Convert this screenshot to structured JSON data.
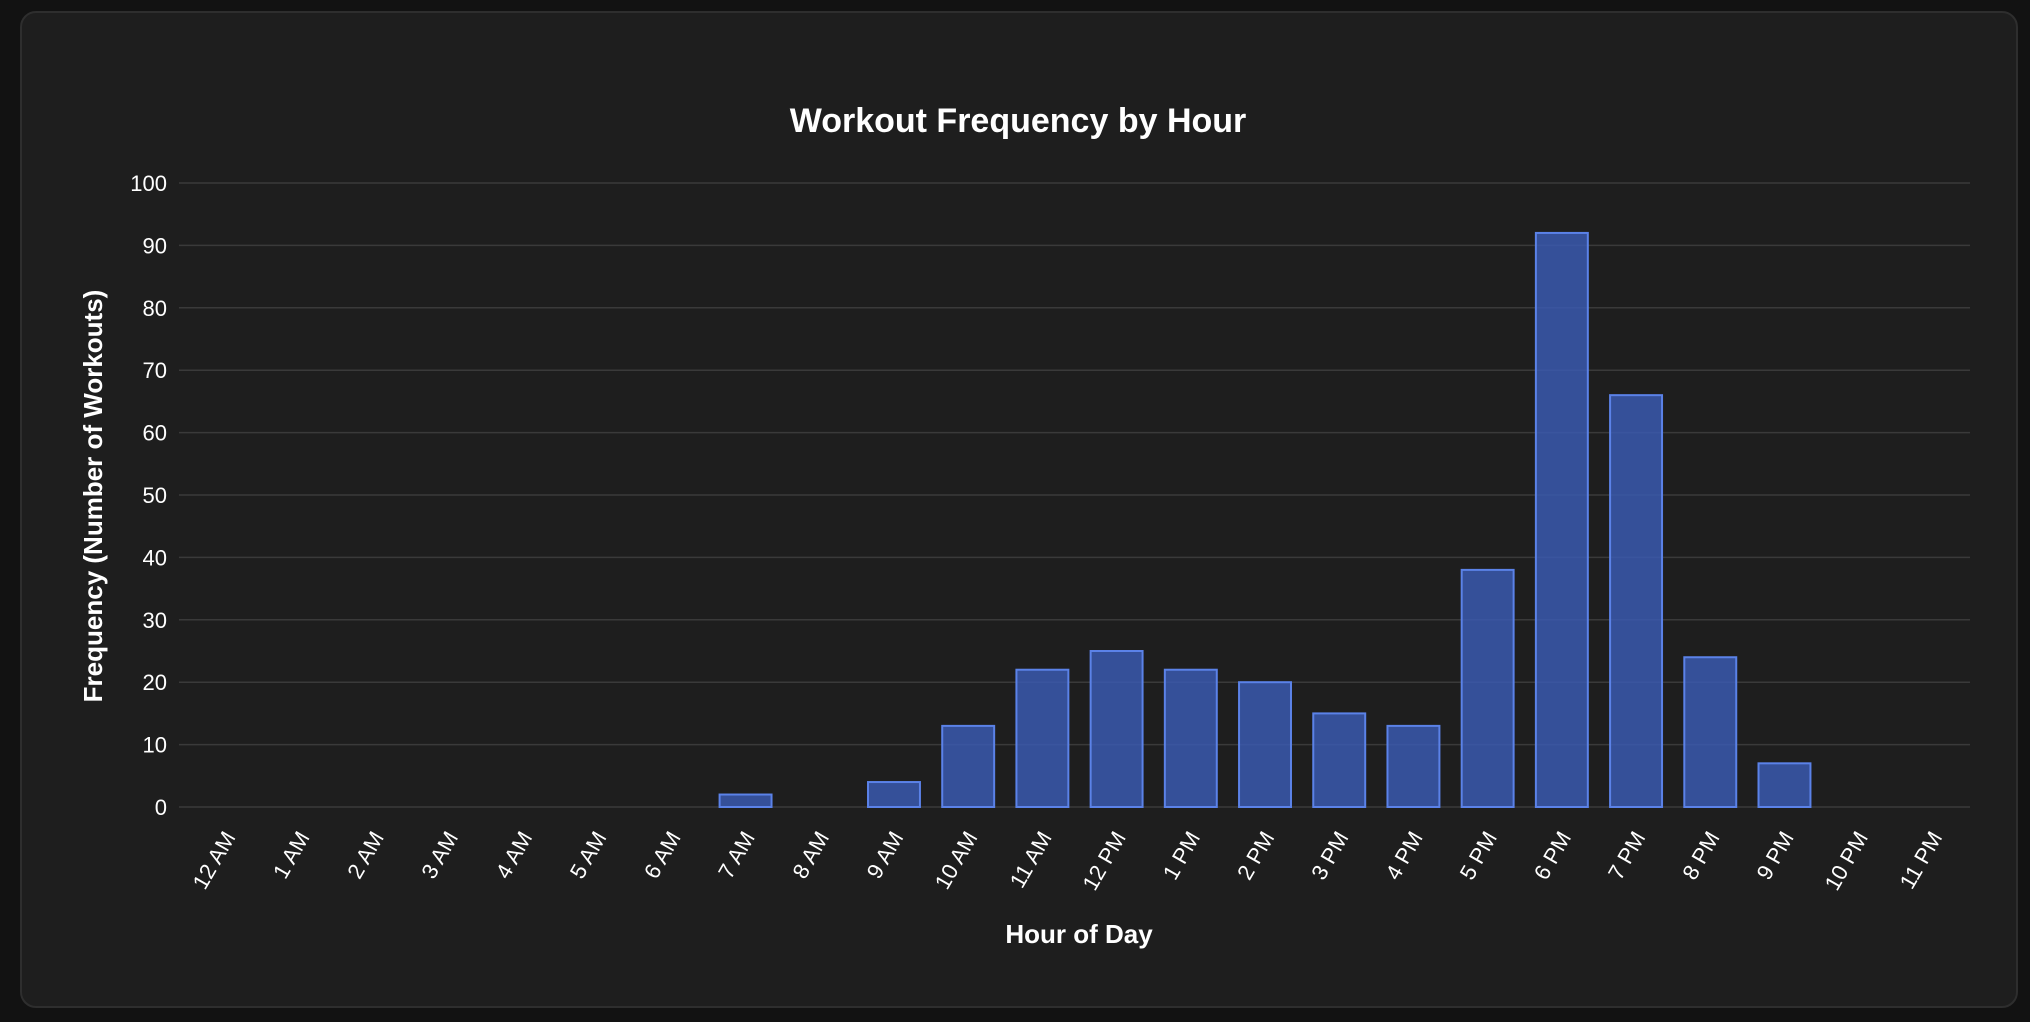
{
  "chart_data": {
    "type": "bar",
    "title": "Workout Frequency by Hour",
    "xlabel": "Hour of Day",
    "ylabel": "Frequency (Number of Workouts)",
    "categories": [
      "12 AM",
      "1 AM",
      "2 AM",
      "3 AM",
      "4 AM",
      "5 AM",
      "6 AM",
      "7 AM",
      "8 AM",
      "9 AM",
      "10 AM",
      "11 AM",
      "12 PM",
      "1 PM",
      "2 PM",
      "3 PM",
      "4 PM",
      "5 PM",
      "6 PM",
      "7 PM",
      "8 PM",
      "9 PM",
      "10 PM",
      "11 PM"
    ],
    "values": [
      0,
      0,
      0,
      0,
      0,
      0,
      0,
      2,
      0,
      4,
      13,
      22,
      25,
      22,
      20,
      15,
      13,
      38,
      92,
      66,
      24,
      7,
      0,
      0
    ],
    "ylim": [
      0,
      100
    ],
    "yticks": [
      0,
      10,
      20,
      30,
      40,
      50,
      60,
      70,
      80,
      90,
      100
    ],
    "grid": true,
    "legend": "none",
    "colors": {
      "bar_fill": "#3b5cb8",
      "bar_fill_opacity": 0.8,
      "bar_stroke": "#5b82e8",
      "background": "#1e1e1e",
      "grid": "#3a3a3a",
      "text": "#ffffff"
    }
  }
}
